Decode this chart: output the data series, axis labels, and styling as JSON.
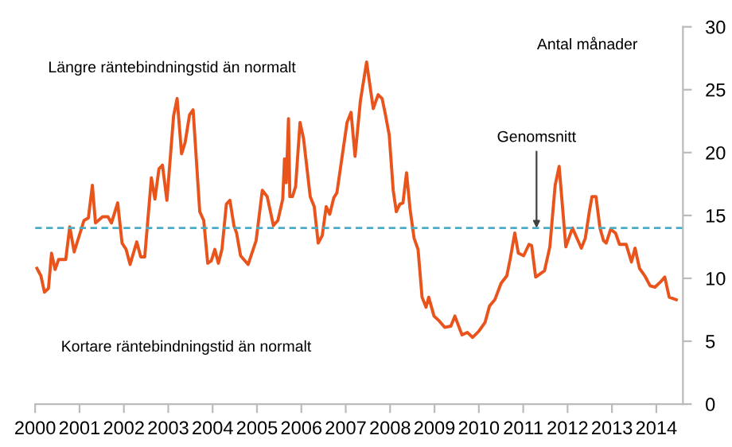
{
  "chart_data": {
    "type": "line",
    "ylabel": "Antal månader",
    "x": [
      2000.04,
      2000.13,
      2000.21,
      2000.3,
      2000.37,
      2000.45,
      2000.53,
      2000.69,
      2000.78,
      2000.88,
      2001.1,
      2001.2,
      2001.29,
      2001.36,
      2001.52,
      2001.64,
      2001.72,
      2001.86,
      2001.96,
      2002.05,
      2002.14,
      2002.29,
      2002.38,
      2002.47,
      2002.62,
      2002.7,
      2002.79,
      2002.87,
      2002.97,
      2003.12,
      2003.2,
      2003.3,
      2003.38,
      2003.48,
      2003.56,
      2003.71,
      2003.8,
      2003.89,
      2003.97,
      2004.05,
      2004.13,
      2004.21,
      2004.31,
      2004.39,
      2004.48,
      2004.54,
      2004.63,
      2004.8,
      2004.98,
      2005.12,
      2005.23,
      2005.37,
      2005.47,
      2005.58,
      2005.62,
      2005.66,
      2005.71,
      2005.74,
      2005.8,
      2005.87,
      2005.97,
      2006.05,
      2006.2,
      2006.29,
      2006.38,
      2006.47,
      2006.56,
      2006.64,
      2006.73,
      2006.8,
      2007.03,
      2007.12,
      2007.21,
      2007.33,
      2007.47,
      2007.62,
      2007.73,
      2007.82,
      2007.89,
      2007.98,
      2008.07,
      2008.14,
      2008.22,
      2008.29,
      2008.37,
      2008.45,
      2008.54,
      2008.63,
      2008.72,
      2008.81,
      2008.87,
      2008.99,
      2009.11,
      2009.23,
      2009.37,
      2009.46,
      2009.62,
      2009.74,
      2009.86,
      2010.0,
      2010.14,
      2010.24,
      2010.36,
      2010.5,
      2010.63,
      2010.71,
      2010.81,
      2010.89,
      2011.01,
      2011.13,
      2011.19,
      2011.28,
      2011.48,
      2011.6,
      2011.72,
      2011.81,
      2011.96,
      2012.11,
      2012.31,
      2012.4,
      2012.49,
      2012.55,
      2012.64,
      2012.73,
      2012.81,
      2012.87,
      2012.97,
      2013.08,
      2013.17,
      2013.32,
      2013.44,
      2013.52,
      2013.62,
      2013.74,
      2013.86,
      2013.97,
      2014.09,
      2014.19,
      2014.29,
      2014.45
    ],
    "series": [
      {
        "color": "#e8541c",
        "values": [
          10.8,
          10.2,
          8.9,
          9.2,
          12.0,
          10.7,
          11.5,
          11.5,
          14.1,
          12.1,
          14.6,
          14.8,
          17.4,
          14.4,
          14.9,
          14.9,
          14.4,
          16.0,
          12.8,
          12.3,
          11.1,
          12.9,
          11.7,
          11.7,
          18.0,
          16.3,
          18.7,
          19.0,
          16.2,
          22.9,
          24.3,
          19.9,
          20.8,
          23.0,
          23.4,
          15.3,
          14.6,
          11.2,
          11.4,
          12.3,
          11.2,
          12.3,
          15.9,
          16.2,
          14.2,
          13.6,
          11.8,
          11.1,
          13.0,
          17.0,
          16.5,
          14.2,
          14.6,
          16.3,
          19.5,
          17.6,
          22.7,
          16.5,
          16.5,
          17.3,
          22.4,
          21.1,
          16.5,
          15.7,
          12.8,
          13.4,
          15.7,
          15.1,
          16.4,
          16.8,
          22.4,
          23.2,
          19.7,
          24.1,
          27.2,
          23.5,
          24.6,
          24.3,
          23.1,
          21.4,
          17.0,
          15.3,
          15.9,
          16.0,
          18.4,
          15.5,
          13.2,
          12.3,
          8.5,
          7.7,
          8.5,
          7.0,
          6.6,
          6.1,
          6.2,
          7.0,
          5.5,
          5.7,
          5.3,
          5.8,
          6.5,
          7.8,
          8.3,
          9.6,
          10.2,
          11.6,
          13.6,
          12.0,
          11.8,
          12.7,
          12.6,
          10.1,
          10.6,
          12.5,
          17.4,
          18.9,
          12.5,
          14.0,
          12.4,
          13.2,
          15.3,
          16.5,
          16.5,
          14.0,
          13.0,
          12.8,
          13.9,
          13.6,
          12.7,
          12.7,
          11.3,
          12.4,
          10.8,
          10.2,
          9.4,
          9.3,
          9.7,
          10.1,
          8.5,
          8.3
        ]
      }
    ],
    "xlim": [
      2000,
      2014.6
    ],
    "xticks": [
      2000,
      2001,
      2002,
      2003,
      2004,
      2005,
      2006,
      2007,
      2008,
      2009,
      2010,
      2011,
      2012,
      2013,
      2014
    ],
    "ylim": [
      0,
      30
    ],
    "yticks": [
      0,
      5,
      10,
      15,
      20,
      25,
      30
    ],
    "ref_lines": [
      {
        "axis": "y",
        "value": 14,
        "color": "#4bacc6",
        "line_style": "dashed"
      }
    ],
    "annotations": [
      "Längre räntebindningstid än normalt",
      "Kortare räntebindningstid än normalt",
      {
        "text": "Genomsnitt",
        "x": 2011.3,
        "y": 14
      }
    ],
    "grid": false,
    "legend": false
  }
}
